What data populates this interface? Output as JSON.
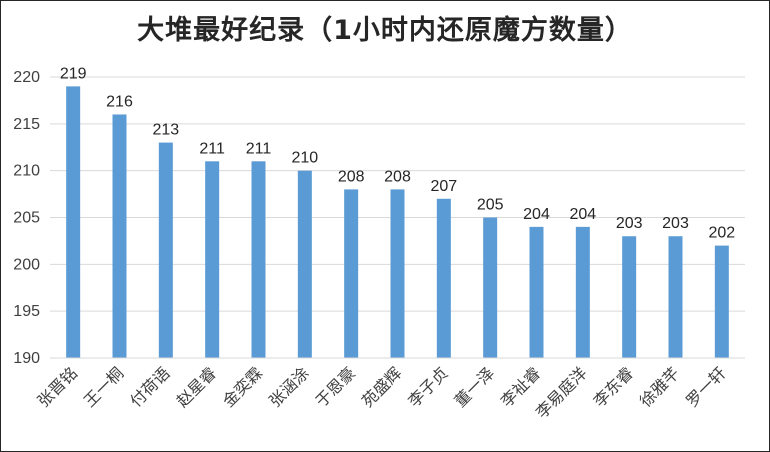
{
  "chart_data": {
    "type": "bar",
    "title": "大堆最好纪录（1小时内还原魔方数量）",
    "categories": [
      "张晋铭",
      "王一桐",
      "付荷语",
      "赵星睿",
      "金奕霖",
      "张涵涂",
      "于恩豪",
      "苑盛辉",
      "李子贞",
      "董一泽",
      "李祉睿",
      "李易庭洋",
      "李东睿",
      "徐雅芊",
      "罗一轩"
    ],
    "values": [
      219,
      216,
      213,
      211,
      211,
      210,
      208,
      208,
      207,
      205,
      204,
      204,
      203,
      203,
      202
    ],
    "ylim": [
      190,
      220
    ],
    "yticks": [
      "190",
      "195",
      "200",
      "205",
      "210",
      "215",
      "220"
    ],
    "grid": true,
    "bar_color": "#5b9bd5",
    "xlabel": "",
    "ylabel": ""
  }
}
